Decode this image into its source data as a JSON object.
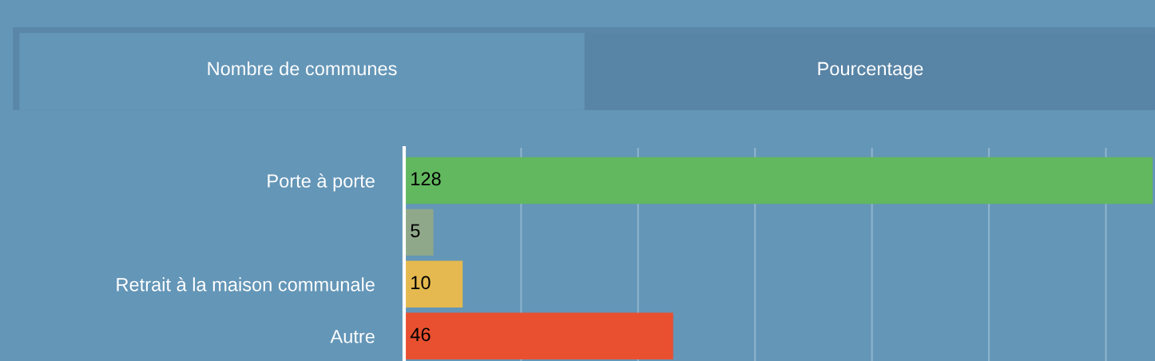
{
  "chart_data": {
    "type": "bar",
    "orientation": "horizontal",
    "annotations": [
      "Nombre de communes",
      "Pourcentage"
    ],
    "categories": [
      "Porte à porte",
      null,
      "Retrait à la maison communale",
      "Autre"
    ],
    "values": [
      128,
      5,
      10,
      46
    ],
    "colors": [
      "#62b85f",
      "#8fa88a",
      "#e5b94f",
      "#e8502f"
    ],
    "data_labels": true,
    "xlim": [
      0,
      128.4
    ],
    "xticks": [
      {
        "value": 0,
        "label": null
      },
      {
        "value": 20,
        "label": null
      },
      {
        "value": 40,
        "label": null
      },
      {
        "value": 60,
        "label": null
      },
      {
        "value": 80,
        "label": null
      },
      {
        "value": 100,
        "label": null
      },
      {
        "value": 120,
        "label": null
      }
    ],
    "tick_labels": "y",
    "grid": "x",
    "legend": false
  }
}
